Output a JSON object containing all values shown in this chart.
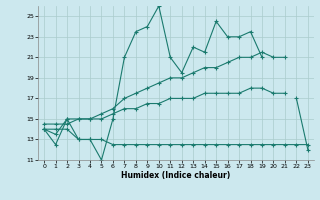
{
  "xlabel": "Humidex (Indice chaleur)",
  "bg_color": "#cce8ee",
  "grid_color": "#aacccc",
  "line_color": "#1a7a6e",
  "xlim": [
    -0.5,
    23.5
  ],
  "ylim": [
    11,
    26
  ],
  "yticks": [
    11,
    13,
    15,
    17,
    19,
    21,
    23,
    25
  ],
  "xticks": [
    0,
    1,
    2,
    3,
    4,
    5,
    6,
    7,
    8,
    9,
    10,
    11,
    12,
    13,
    14,
    15,
    16,
    17,
    18,
    19,
    20,
    21,
    22,
    23
  ],
  "series1_x": [
    0,
    1,
    2,
    3,
    4,
    5,
    6,
    7,
    8,
    9,
    10,
    11,
    12,
    13,
    14,
    15,
    16,
    17,
    18,
    19,
    20,
    21,
    22,
    23
  ],
  "series1_y": [
    14.0,
    12.5,
    15.0,
    13.0,
    13.0,
    11.0,
    15.0,
    21.0,
    23.5,
    24.0,
    26.0,
    21.0,
    19.5,
    22.0,
    21.5,
    24.5,
    23.0,
    23.0,
    23.5,
    21.0,
    null,
    null,
    17.0,
    12.0
  ],
  "series2_x": [
    0,
    1,
    2,
    3,
    4,
    5,
    6,
    7,
    8,
    9,
    10,
    11,
    12,
    13,
    14,
    15,
    16,
    17,
    18,
    19,
    20,
    21
  ],
  "series2_y": [
    14.0,
    13.5,
    15.0,
    15.0,
    15.0,
    15.5,
    16.0,
    17.0,
    17.5,
    18.0,
    18.5,
    19.0,
    19.0,
    19.5,
    20.0,
    20.0,
    20.5,
    21.0,
    21.0,
    21.5,
    21.0,
    21.0
  ],
  "series3_x": [
    0,
    1,
    2,
    3,
    4,
    5,
    6,
    7,
    8,
    9,
    10,
    11,
    12,
    13,
    14,
    15,
    16,
    17,
    18,
    19,
    20,
    21
  ],
  "series3_y": [
    14.5,
    14.5,
    14.5,
    15.0,
    15.0,
    15.0,
    15.5,
    16.0,
    16.0,
    16.5,
    16.5,
    17.0,
    17.0,
    17.0,
    17.5,
    17.5,
    17.5,
    17.5,
    18.0,
    18.0,
    17.5,
    17.5
  ],
  "series4_x": [
    0,
    1,
    2,
    3,
    4,
    5,
    6,
    7,
    8,
    9,
    10,
    11,
    12,
    13,
    14,
    15,
    16,
    17,
    18,
    19,
    20,
    21,
    22,
    23
  ],
  "series4_y": [
    14.0,
    14.0,
    14.0,
    13.0,
    13.0,
    13.0,
    12.5,
    12.5,
    12.5,
    12.5,
    12.5,
    12.5,
    12.5,
    12.5,
    12.5,
    12.5,
    12.5,
    12.5,
    12.5,
    12.5,
    12.5,
    12.5,
    12.5,
    12.5
  ]
}
